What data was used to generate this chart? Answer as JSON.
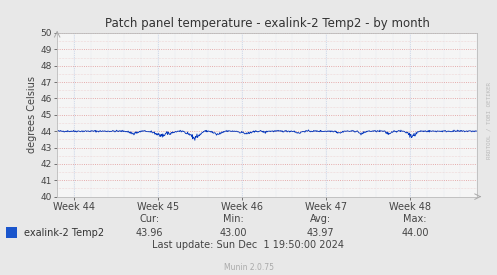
{
  "title": "Patch panel temperature - exalink-2 Temp2 - by month",
  "ylabel": "degrees Celsius",
  "ylim": [
    40,
    50
  ],
  "yticks": [
    40,
    41,
    42,
    43,
    44,
    45,
    46,
    47,
    48,
    49,
    50
  ],
  "xlim": [
    0,
    1
  ],
  "xtick_positions": [
    0.04,
    0.24,
    0.44,
    0.64,
    0.84
  ],
  "xtick_labels": [
    "Week 44",
    "Week 45",
    "Week 46",
    "Week 47",
    "Week 48"
  ],
  "line_color": "#0033bb",
  "line_color_legend": "#1a55cc",
  "bg_color": "#e8e8e8",
  "plot_bg_color": "#f5f5f5",
  "grid_color_red": "#dd8888",
  "grid_color_blue": "#aabbdd",
  "legend_label": "exalink-2 Temp2",
  "cur_val": "43.96",
  "min_val": "43.00",
  "avg_val": "43.97",
  "max_val": "44.00",
  "last_update": "Last update: Sun Dec  1 19:50:00 2024",
  "munin_version": "Munin 2.0.75",
  "watermark": "RRDTOOL / TOBI OETIKER",
  "base_temp": 44.0,
  "noise_seed": 42
}
